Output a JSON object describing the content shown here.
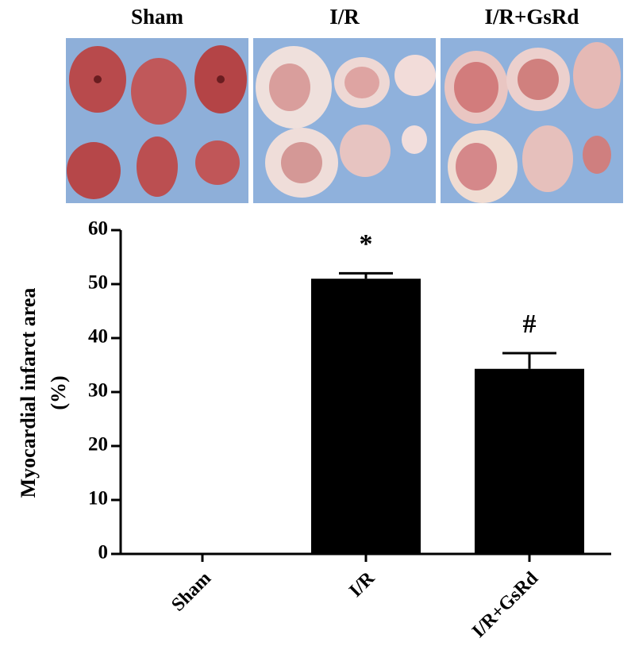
{
  "photos": {
    "labels": [
      "Sham",
      "I/R",
      "I/R+GsRd"
    ]
  },
  "chart_data": {
    "type": "bar",
    "ylabel": [
      "Myocardial infarct area",
      "(%)"
    ],
    "categories": [
      "Sham",
      "I/R",
      "I/R+GsRd"
    ],
    "values": [
      0,
      51,
      34.3
    ],
    "errors": [
      null,
      1.0,
      2.9
    ],
    "annotations": [
      null,
      "*",
      "#"
    ],
    "color": "#000000",
    "ylim": [
      0,
      60
    ],
    "yticks": [
      0,
      10,
      20,
      30,
      40,
      50,
      60
    ],
    "grid": false
  }
}
